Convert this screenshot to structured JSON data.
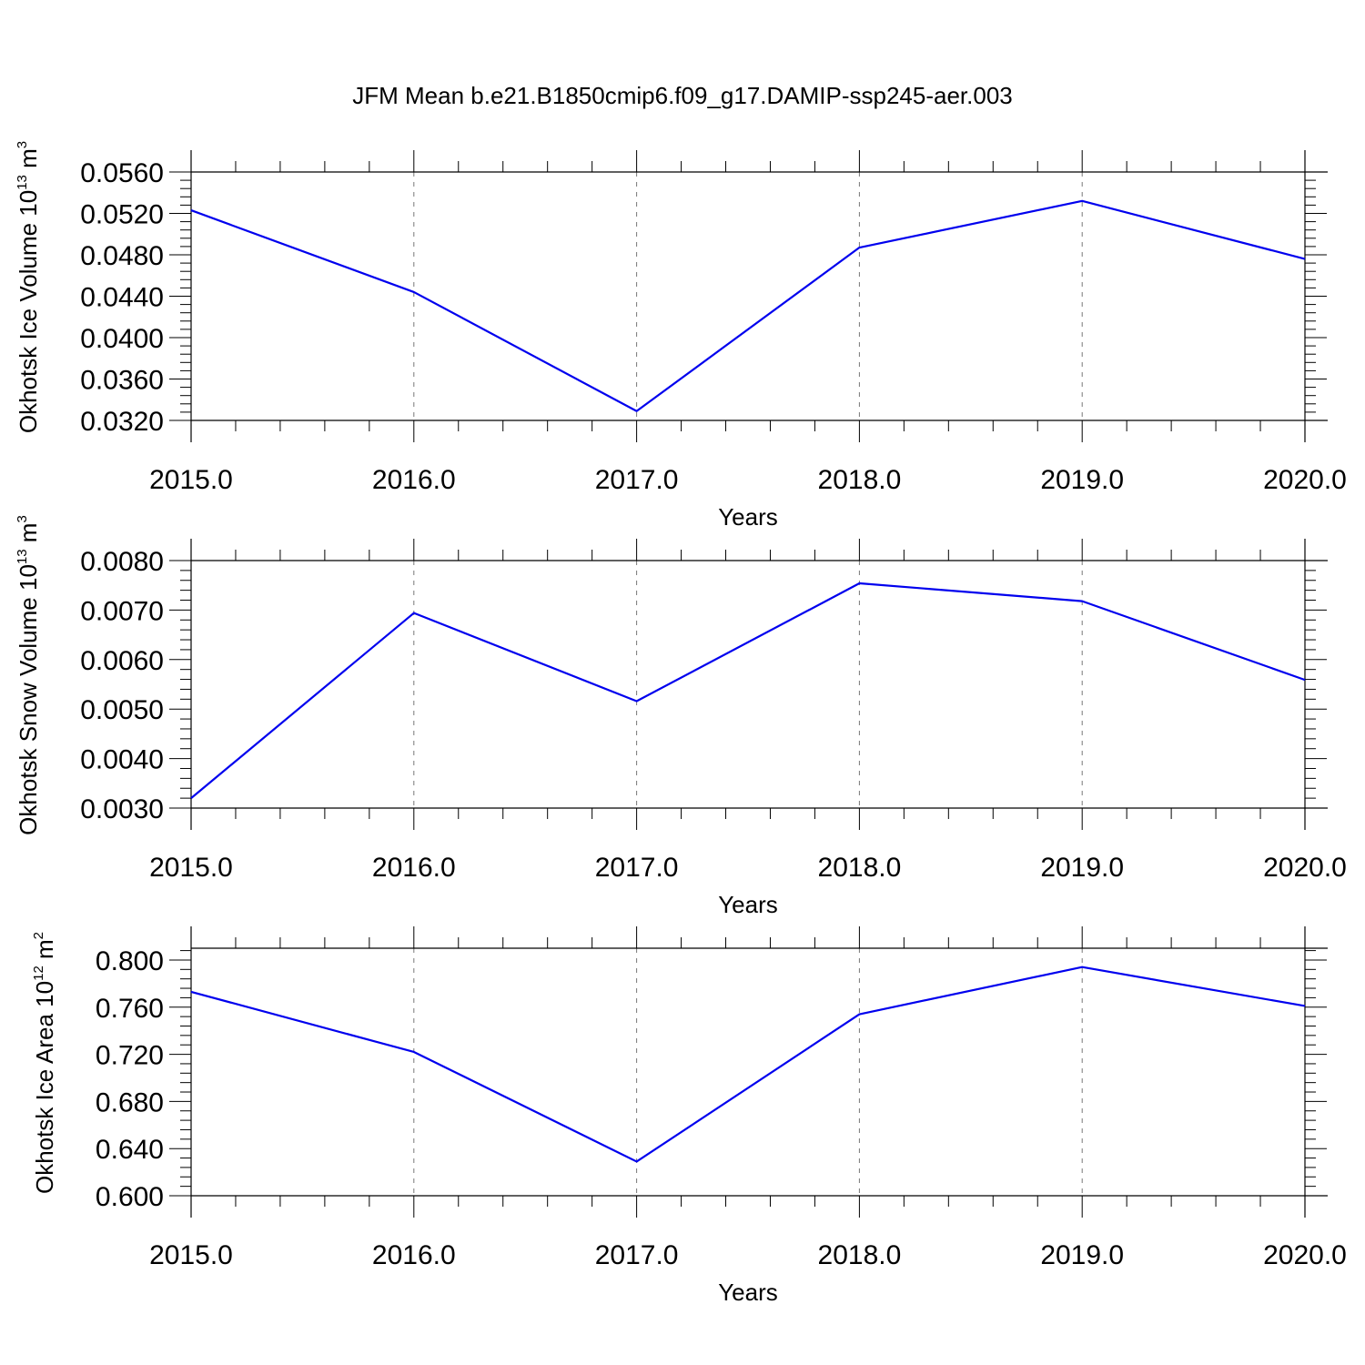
{
  "title": "JFM Mean b.e21.B1850cmip6.f09_g17.DAMIP-ssp245-aer.003",
  "line_color": "#0000ee",
  "chart_data": [
    {
      "type": "line",
      "x": [
        2015,
        2016,
        2017,
        2018,
        2019,
        2020
      ],
      "series": [
        {
          "values": [
            0.0523,
            0.0444,
            0.0329,
            0.0487,
            0.0532,
            0.0476
          ]
        }
      ],
      "xlabel": "Years",
      "ylabel": {
        "text": "Okhotsk Ice Volume 10",
        "sup": "13",
        "unit": " m",
        "unit_sup": "3"
      },
      "xlim": [
        2015,
        2020
      ],
      "ylim": [
        0.032,
        0.056
      ],
      "x_tick_labels": [
        "2015.0",
        "2016.0",
        "2017.0",
        "2018.0",
        "2019.0",
        "2020.0"
      ],
      "y_ticks": [
        0.032,
        0.036,
        0.04,
        0.044,
        0.048,
        0.052,
        0.056
      ],
      "y_tick_labels": [
        "0.0320",
        "0.0360",
        "0.0400",
        "0.0440",
        "0.0480",
        "0.0520",
        "0.0560"
      ],
      "grid": "vertical-dashed"
    },
    {
      "type": "line",
      "x": [
        2015,
        2016,
        2017,
        2018,
        2019,
        2020
      ],
      "series": [
        {
          "values": [
            0.0032,
            0.00694,
            0.00516,
            0.00754,
            0.00718,
            0.00559
          ]
        }
      ],
      "xlabel": "Years",
      "ylabel": {
        "text": "Okhotsk Snow Volume 10",
        "sup": "13",
        "unit": " m",
        "unit_sup": "3"
      },
      "xlim": [
        2015,
        2020
      ],
      "ylim": [
        0.003,
        0.008
      ],
      "x_tick_labels": [
        "2015.0",
        "2016.0",
        "2017.0",
        "2018.0",
        "2019.0",
        "2020.0"
      ],
      "y_ticks": [
        0.003,
        0.004,
        0.005,
        0.006,
        0.007,
        0.008
      ],
      "y_tick_labels": [
        "0.0030",
        "0.0040",
        "0.0050",
        "0.0060",
        "0.0070",
        "0.0080"
      ],
      "grid": "vertical-dashed"
    },
    {
      "type": "line",
      "x": [
        2015,
        2016,
        2017,
        2018,
        2019,
        2020
      ],
      "series": [
        {
          "values": [
            0.773,
            0.722,
            0.629,
            0.754,
            0.794,
            0.761
          ]
        }
      ],
      "xlabel": "Years",
      "ylabel": {
        "text": "Okhotsk Ice Area 10",
        "sup": "12",
        "unit": " m",
        "unit_sup": "2"
      },
      "xlim": [
        2015,
        2020
      ],
      "ylim": [
        0.6,
        0.81
      ],
      "x_tick_labels": [
        "2015.0",
        "2016.0",
        "2017.0",
        "2018.0",
        "2019.0",
        "2020.0"
      ],
      "y_ticks": [
        0.6,
        0.64,
        0.68,
        0.72,
        0.76,
        0.8
      ],
      "y_tick_labels": [
        "0.600",
        "0.640",
        "0.680",
        "0.720",
        "0.760",
        "0.800"
      ],
      "grid": "vertical-dashed"
    }
  ]
}
